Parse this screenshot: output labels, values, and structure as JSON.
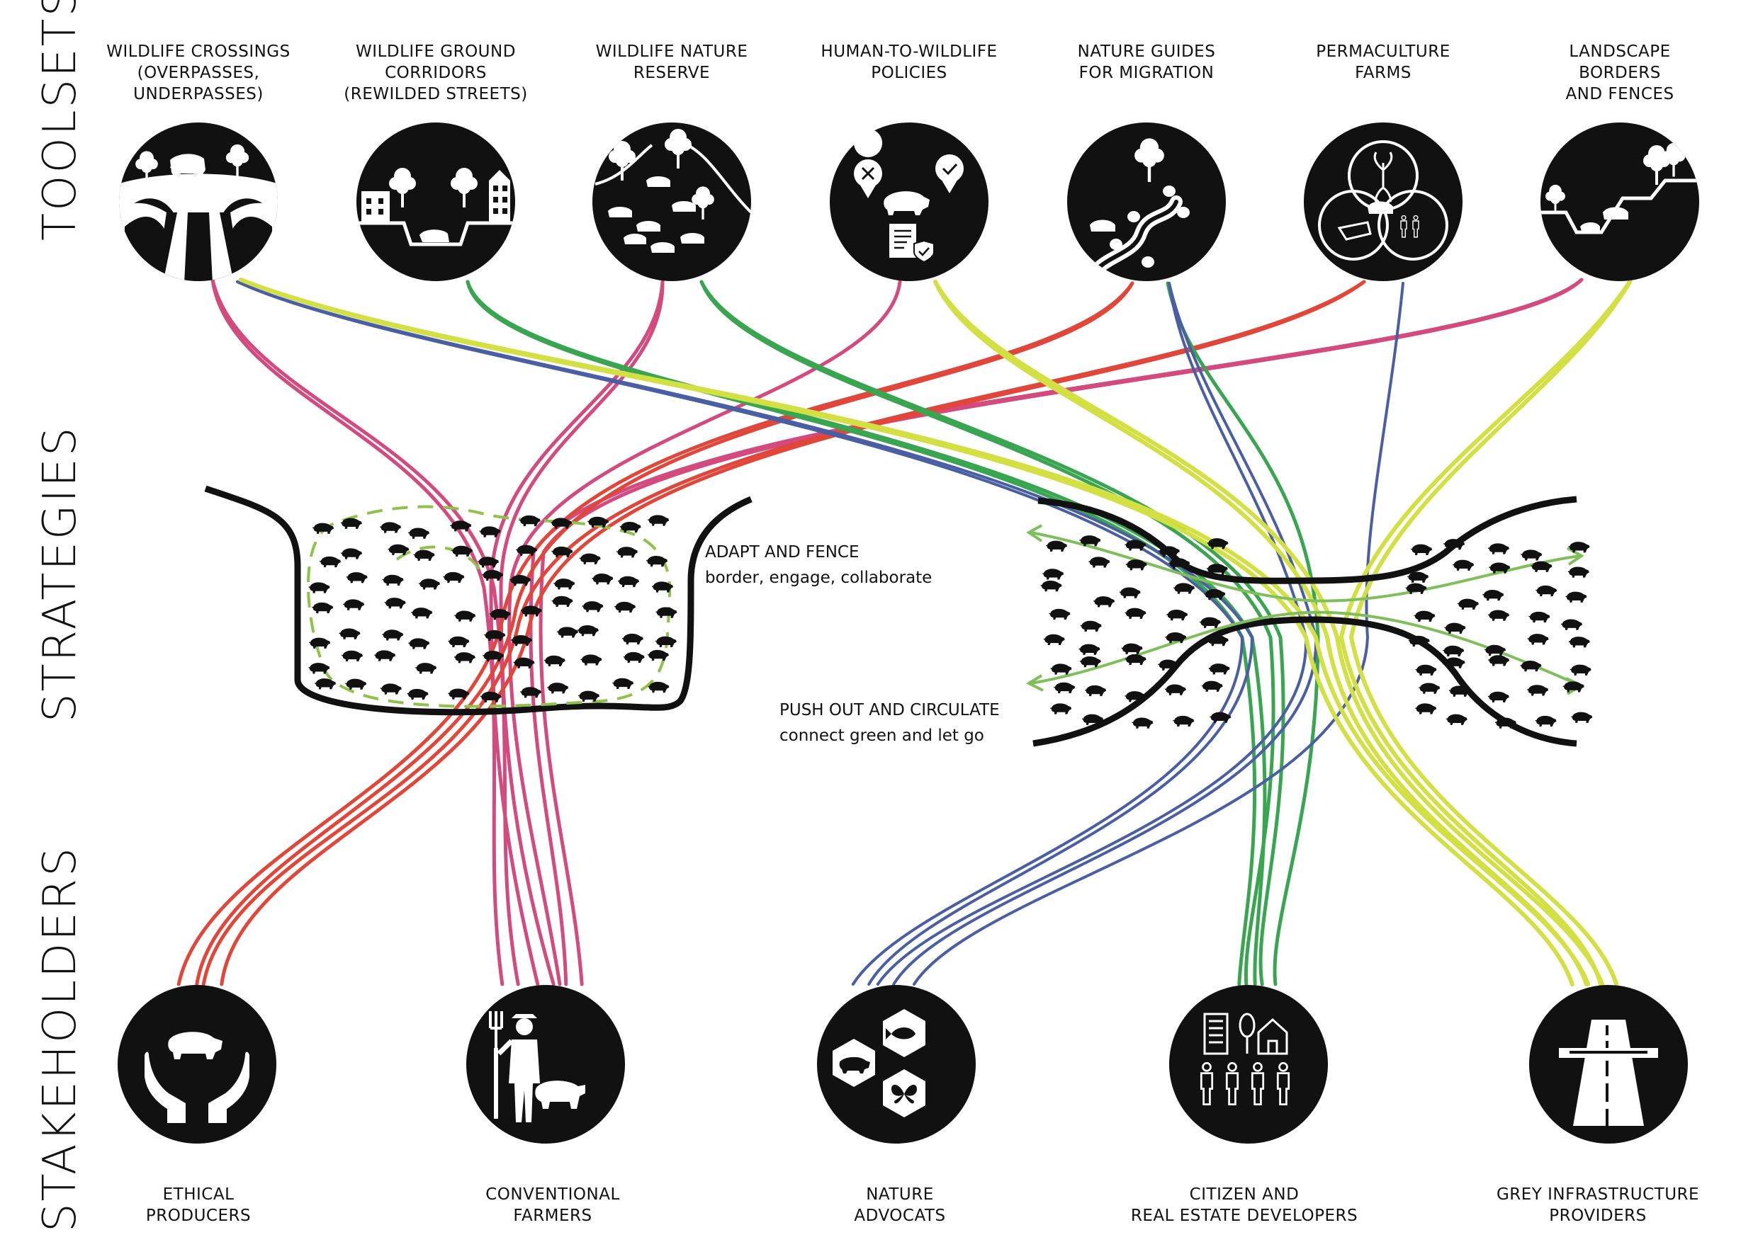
{
  "row_labels": {
    "toolsets": "TOOLSETS",
    "strategies": "STRATEGIES",
    "stakeholders": "STAKEHOLDERS"
  },
  "toolsets": [
    {
      "id": "crossings",
      "lines": [
        "WILDLIFE CROSSINGS",
        "(OVERPASSES,",
        "UNDERPASSES)"
      ],
      "icon": "bridge-boar-icon"
    },
    {
      "id": "corridors",
      "lines": [
        "WILDLIFE GROUND",
        "CORRIDORS",
        "(REWILDED STREETS)"
      ],
      "icon": "street-corridor-icon"
    },
    {
      "id": "reserve",
      "lines": [
        "WILDLIFE NATURE",
        "RESERVE"
      ],
      "icon": "nature-reserve-icon"
    },
    {
      "id": "policies",
      "lines": [
        "HUMAN-TO-WILDLIFE",
        "POLICIES"
      ],
      "icon": "policy-document-icon"
    },
    {
      "id": "guides",
      "lines": [
        "NATURE GUIDES",
        "FOR MIGRATION"
      ],
      "icon": "migration-path-icon"
    },
    {
      "id": "permaculture",
      "lines": [
        "PERMACULTURE",
        "FARMS"
      ],
      "icon": "permaculture-icon"
    },
    {
      "id": "borders",
      "lines": [
        "LANDSCAPE",
        "BORDERS",
        "AND FENCES"
      ],
      "icon": "landscape-border-icon"
    }
  ],
  "strategies": [
    {
      "id": "adapt",
      "title": "ADAPT AND FENCE",
      "subtitle": "border, engage, collaborate"
    },
    {
      "id": "push",
      "title": "PUSH OUT AND CIRCULATE",
      "subtitle": "connect green and let go"
    }
  ],
  "stakeholders": [
    {
      "id": "ethical",
      "lines": [
        "ETHICAL",
        "PRODUCERS"
      ],
      "icon": "hands-boar-icon"
    },
    {
      "id": "conventional",
      "lines": [
        "CONVENTIONAL",
        "FARMERS"
      ],
      "icon": "farmer-pig-icon"
    },
    {
      "id": "nature",
      "lines": [
        "NATURE",
        "ADVOCATS"
      ],
      "icon": "hexagon-animals-icon"
    },
    {
      "id": "citizen",
      "lines": [
        "CITIZEN AND",
        "REAL ESTATE DEVELOPERS"
      ],
      "icon": "city-people-icon"
    },
    {
      "id": "grey",
      "lines": [
        "GREY INFRASTRUCTURE",
        "PROVIDERS"
      ],
      "icon": "highway-icon"
    }
  ],
  "colors": {
    "pink": "#d24a7e",
    "red": "#e0473a",
    "green": "#3aa551",
    "blue": "#4a5ea3",
    "lime": "#d2e044",
    "fence_dash": "#8ec24a",
    "arrow": "#7fbf5a"
  }
}
